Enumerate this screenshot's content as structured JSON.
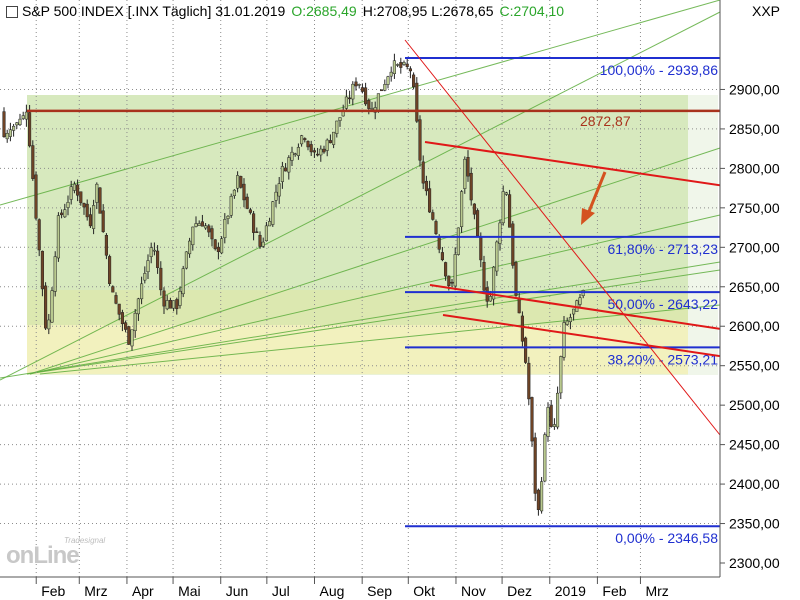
{
  "header": {
    "symbol": "S&P 500 INDEX [.INX  Täglich] 31.01.2019",
    "open": "O:2685,49",
    "high_low": "H:2708,95 L:2678,65",
    "close": "C:2704,10",
    "indicator": "XXP"
  },
  "logo": {
    "text": "onLine",
    "small": "Tradesignal"
  },
  "colors": {
    "up": "#2aa52a",
    "candle": "#6e4326",
    "fib_blue": "#1f2fd0",
    "resistance": "#a8321c",
    "channel_red": "#e01818",
    "arrow": "#d4521f",
    "fan_green": "#5fae3f"
  },
  "chart_data": {
    "type": "line",
    "series_type": "candlestick",
    "y_axis": {
      "min": 2300,
      "max": 2950,
      "ticks": [
        "2300,00",
        "2350,00",
        "2400,00",
        "2450,00",
        "2500,00",
        "2550,00",
        "2600,00",
        "2650,00",
        "2700,00",
        "2750,00",
        "2800,00",
        "2850,00",
        "2900,00"
      ]
    },
    "x_axis": {
      "ticks": [
        "Feb",
        "Mrz",
        "Apr",
        "Mai",
        "Jun",
        "Jul",
        "Aug",
        "Sep",
        "Okt",
        "Nov",
        "Dez",
        "2019",
        "Feb",
        "Mrz"
      ]
    },
    "close_path": [
      [
        "2018-01-26",
        2872
      ],
      [
        "2018-02-05",
        2650
      ],
      [
        "2018-02-08",
        2581
      ],
      [
        "2018-02-15",
        2731
      ],
      [
        "2018-02-26",
        2780
      ],
      [
        "2018-03-08",
        2730
      ],
      [
        "2018-03-12",
        2783
      ],
      [
        "2018-03-22",
        2643
      ],
      [
        "2018-04-02",
        2582
      ],
      [
        "2018-04-12",
        2663
      ],
      [
        "2018-04-18",
        2708
      ],
      [
        "2018-04-24",
        2634
      ],
      [
        "2018-05-03",
        2623
      ],
      [
        "2018-05-14",
        2730
      ],
      [
        "2018-05-21",
        2733
      ],
      [
        "2018-05-29",
        2690
      ],
      [
        "2018-06-12",
        2786
      ],
      [
        "2018-06-27",
        2699
      ],
      [
        "2018-07-10",
        2793
      ],
      [
        "2018-07-25",
        2846
      ],
      [
        "2018-08-01",
        2814
      ],
      [
        "2018-08-10",
        2833
      ],
      [
        "2018-08-29",
        2914
      ],
      [
        "2018-09-07",
        2872
      ],
      [
        "2018-09-20",
        2930
      ],
      [
        "2018-10-03",
        2925
      ],
      [
        "2018-10-10",
        2785
      ],
      [
        "2018-10-15",
        2751
      ],
      [
        "2018-10-29",
        2641
      ],
      [
        "2018-11-07",
        2813
      ],
      [
        "2018-11-20",
        2642
      ],
      [
        "2018-11-23",
        2632
      ],
      [
        "2018-12-03",
        2790
      ],
      [
        "2018-12-10",
        2637
      ],
      [
        "2018-12-17",
        2546
      ],
      [
        "2018-12-24",
        2351
      ],
      [
        "2018-12-31",
        2506
      ],
      [
        "2019-01-03",
        2448
      ],
      [
        "2019-01-10",
        2597
      ],
      [
        "2019-01-23",
        2639
      ],
      [
        "2019-01-31",
        2704
      ]
    ],
    "fibonacci": [
      {
        "level": "100,00%",
        "value": 2939.86,
        "label": "100,00% - 2939,86"
      },
      {
        "level": "61,80%",
        "value": 2713.23,
        "label": "61,80% - 2713,23"
      },
      {
        "level": "50,00%",
        "value": 2643.22,
        "label": "50,00% - 2643,22"
      },
      {
        "level": "38,20%",
        "value": 2573.21,
        "label": "38,20% - 2573,21"
      },
      {
        "level": "0,00%",
        "value": 2346.58,
        "label": "0,00% - 2346,58"
      }
    ],
    "resistance": {
      "value": 2872.87,
      "label": "2872,87"
    }
  }
}
